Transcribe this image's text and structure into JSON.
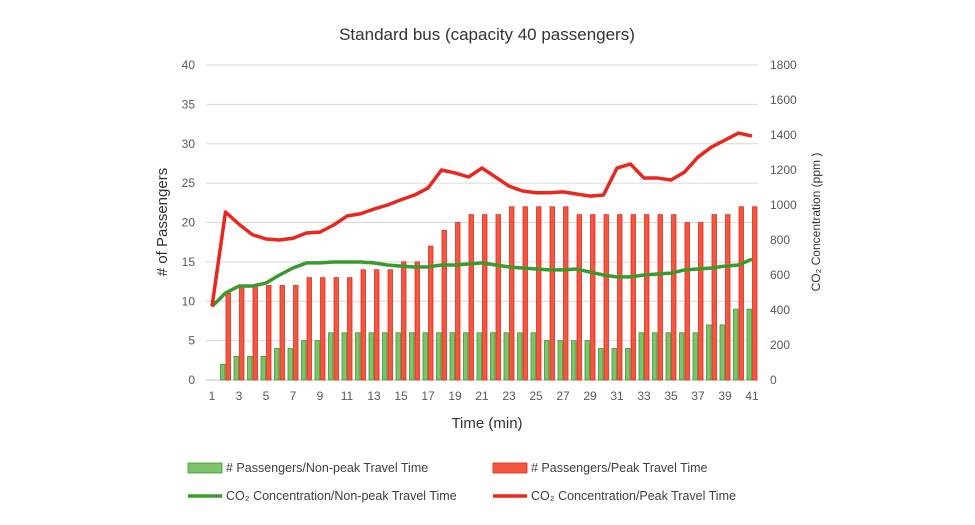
{
  "chart_data": {
    "type": "bar+line",
    "title": "Standard bus (capacity 40 passengers)",
    "xlabel": "Time (min)",
    "ylabel": "# of Passengers",
    "y2label": "CO₂ Concentration (ppm )",
    "ylim": [
      0,
      40
    ],
    "y2lim": [
      0,
      1800
    ],
    "yticks": [
      "0",
      "5",
      "10",
      "15",
      "20",
      "25",
      "30",
      "35",
      "40"
    ],
    "y2ticks": [
      "0",
      "200",
      "400",
      "600",
      "800",
      "1000",
      "1200",
      "1400",
      "1600",
      "1800"
    ],
    "x": [
      1,
      2,
      3,
      4,
      5,
      6,
      7,
      8,
      9,
      10,
      11,
      12,
      13,
      14,
      15,
      16,
      17,
      18,
      19,
      20,
      21,
      22,
      23,
      24,
      25,
      26,
      27,
      28,
      29,
      30,
      31,
      32,
      33,
      34,
      35,
      36,
      37,
      38,
      39,
      40,
      41
    ],
    "xticks": [
      "1",
      "3",
      "5",
      "7",
      "9",
      "11",
      "13",
      "15",
      "17",
      "19",
      "21",
      "23",
      "25",
      "27",
      "29",
      "31",
      "33",
      "35",
      "37",
      "39",
      "41"
    ],
    "grid": true,
    "legend_position": "bottom",
    "series": [
      {
        "name": "# Passengers/Non-peak Travel Time",
        "type": "bar",
        "axis": "left",
        "color": "#7dc36b",
        "values": [
          0,
          2,
          3,
          3,
          3,
          4,
          4,
          5,
          5,
          6,
          6,
          6,
          6,
          6,
          6,
          6,
          6,
          6,
          6,
          6,
          6,
          6,
          6,
          6,
          6,
          5,
          5,
          5,
          5,
          4,
          4,
          4,
          6,
          6,
          6,
          6,
          6,
          7,
          7,
          9,
          9
        ]
      },
      {
        "name": "# Passengers/Peak Travel Time",
        "type": "bar",
        "axis": "left",
        "color": "#f0583f",
        "values": [
          0,
          11,
          12,
          12,
          12,
          12,
          12,
          13,
          13,
          13,
          13,
          14,
          14,
          14,
          15,
          15,
          17,
          19,
          20,
          21,
          21,
          21,
          22,
          22,
          22,
          22,
          22,
          21,
          21,
          21,
          21,
          21,
          21,
          21,
          21,
          20,
          20,
          21,
          21,
          22,
          22
        ]
      },
      {
        "name": "CO₂ Concentration/Non-peak Travel Time",
        "type": "line",
        "axis": "right",
        "color": "#3a9a2e",
        "values": [
          420,
          497,
          537,
          537,
          554,
          600,
          640,
          669,
          669,
          674,
          674,
          674,
          669,
          657,
          651,
          646,
          646,
          657,
          657,
          663,
          669,
          657,
          646,
          640,
          634,
          629,
          629,
          634,
          617,
          600,
          589,
          589,
          600,
          606,
          611,
          629,
          634,
          640,
          651,
          657,
          691
        ]
      },
      {
        "name": "CO₂ Concentration/Peak Travel Time",
        "type": "line",
        "axis": "right",
        "color": "#e8281e",
        "values": [
          420,
          960,
          890,
          830,
          806,
          800,
          810,
          840,
          845,
          885,
          937,
          950,
          977,
          1000,
          1030,
          1057,
          1097,
          1200,
          1183,
          1160,
          1211,
          1160,
          1108,
          1080,
          1070,
          1070,
          1075,
          1063,
          1051,
          1057,
          1211,
          1234,
          1154,
          1154,
          1143,
          1188,
          1274,
          1331,
          1371,
          1411,
          1394
        ]
      }
    ]
  }
}
